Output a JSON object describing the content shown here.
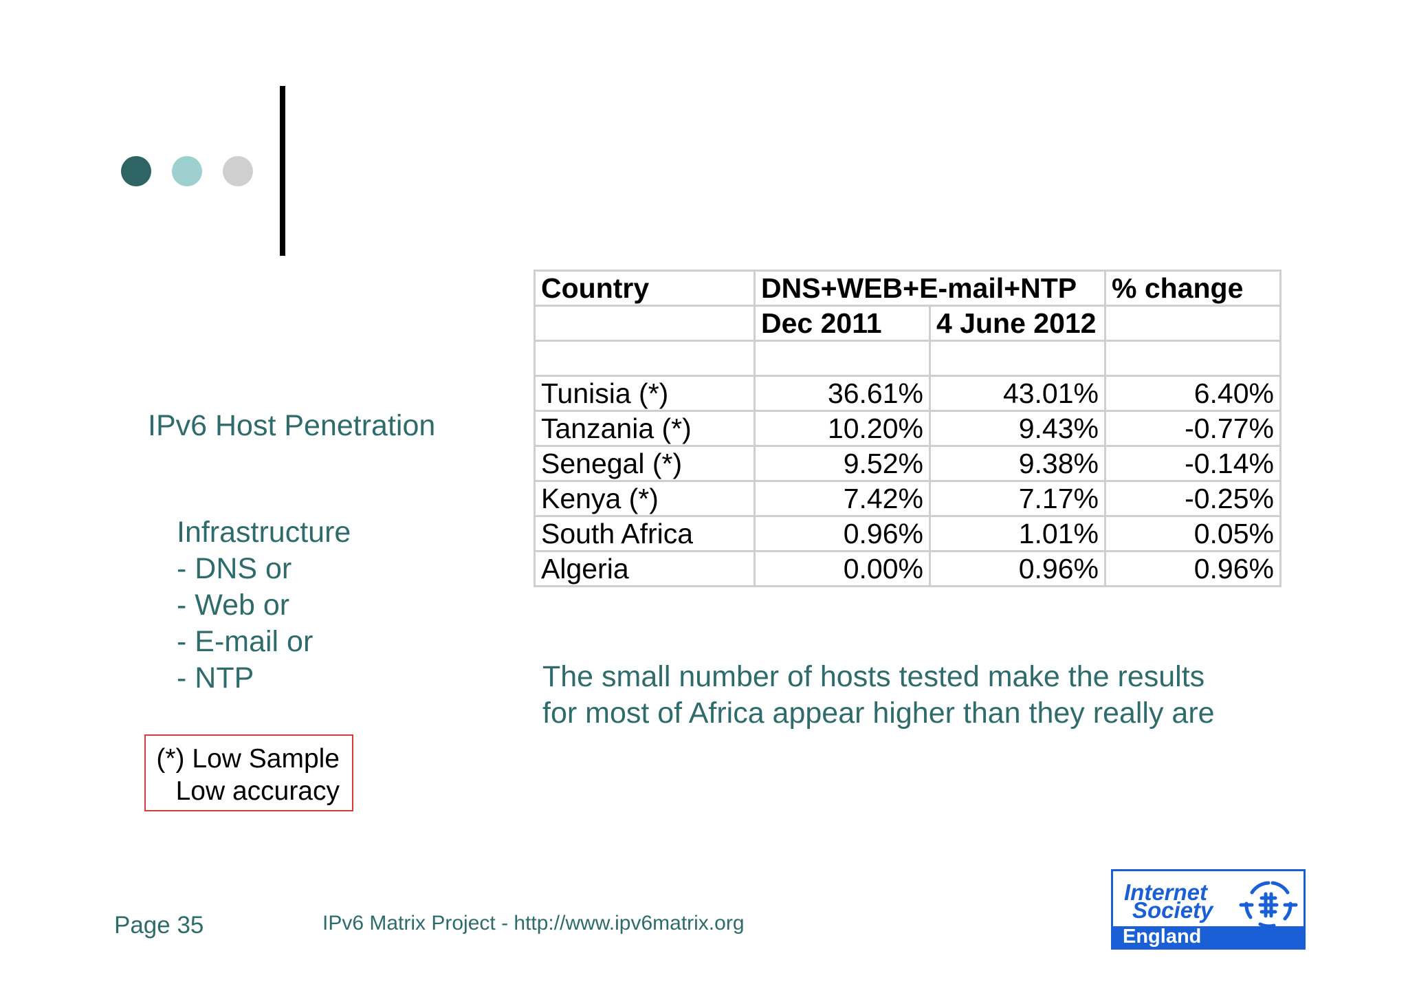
{
  "slide": {
    "topic": "IPv6 Host Penetration",
    "infrastructure": [
      "Infrastructure",
      "- DNS or",
      "- Web or",
      "- E-mail or",
      "- NTP"
    ],
    "note": [
      "(*) Low Sample",
      "Low accuracy"
    ],
    "remark": [
      "The small number of hosts tested make the results",
      "for most of Africa appear higher than they really are"
    ]
  },
  "table": {
    "header": {
      "country": "Country",
      "measure": "DNS+WEB+E-mail+NTP",
      "change": "% change",
      "dec_2011": "Dec 2011",
      "june_2012": "4 June 2012"
    },
    "rows": [
      {
        "country": "Tunisia (*)",
        "dec_2011": "36.61%",
        "june_2012": "43.01%",
        "change": "6.40%"
      },
      {
        "country": "Tanzania (*)",
        "dec_2011": "10.20%",
        "june_2012": "9.43%",
        "change": "-0.77%"
      },
      {
        "country": "Senegal (*)",
        "dec_2011": "9.52%",
        "june_2012": "9.38%",
        "change": "-0.14%"
      },
      {
        "country": "Kenya (*)",
        "dec_2011": "7.42%",
        "june_2012": "7.17%",
        "change": "-0.25%"
      },
      {
        "country": "South Africa",
        "dec_2011": "0.96%",
        "june_2012": "1.01%",
        "change": "0.05%"
      },
      {
        "country": "Algeria",
        "dec_2011": "0.00%",
        "june_2012": "0.96%",
        "change": "0.96%"
      }
    ]
  },
  "footer": {
    "page": "Page 35",
    "project": "IPv6 Matrix Project - http://www.ipv6matrix.org"
  },
  "logo": {
    "line1": "Internet",
    "line2": "Society",
    "band": "England",
    "icon": "isoc-globe-icon"
  },
  "colors": {
    "text_teal": "#2f6b6b",
    "dot_dark": "#2f6464",
    "dot_light": "#9dd0cf",
    "dot_grey": "#cfcfcf",
    "note_border": "#d63a3a",
    "logo_blue": "#1a5fd6"
  }
}
